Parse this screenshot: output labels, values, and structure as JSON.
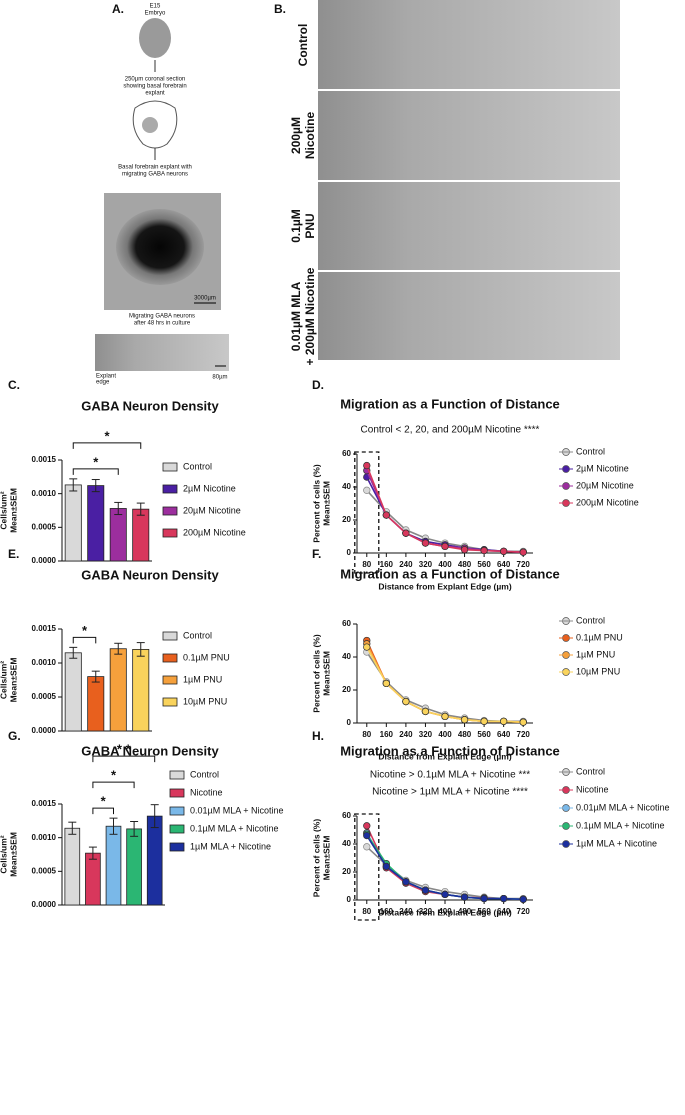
{
  "panel_a": {
    "label": "A.",
    "embryo": [
      "E15",
      "Embryo"
    ],
    "section": [
      "250µm coronal section",
      "showing basal forebrain",
      "explant"
    ],
    "explant": [
      "Basal forebrain explant with",
      "migrating GABA neurons"
    ],
    "scale_bar_1": "3000µm",
    "caption": [
      "Migrating GABA neurons",
      "after 48 hrs in culture"
    ],
    "edge": [
      "Explant",
      "edge"
    ],
    "scale_bar_2": "80µm"
  },
  "panel_b": {
    "label": "B.",
    "rows": [
      [
        "Control"
      ],
      [
        "200µM",
        "Nicotine"
      ],
      [
        "0.1µM",
        "PNU"
      ],
      [
        "0.01µM MLA",
        "+ 200µM Nicotine"
      ]
    ]
  },
  "chart_data": [
    {
      "type": "bar",
      "panel_label": "C.",
      "title": "GABA Neuron Density",
      "y_label": [
        "Cells/um²",
        "Mean±SEM"
      ],
      "categories": [
        "Control",
        "2µM Nicotine",
        "20µM Nicotine",
        "200µM Nicotine"
      ],
      "values": [
        0.00113,
        0.00112,
        0.00078,
        0.00077
      ],
      "errors": [
        9e-05,
        9e-05,
        9e-05,
        9e-05
      ],
      "colors": [
        "#d9d9d9",
        "#4a1fa3",
        "#9c2e9e",
        "#d8375c"
      ],
      "ylim": [
        0,
        0.0015
      ],
      "yticks": [
        {
          "value": 0,
          "label": "0.0000"
        },
        {
          "value": 0.0005,
          "label": "0.0005"
        },
        {
          "value": 0.001,
          "label": "0.0010"
        },
        {
          "value": 0.0015,
          "label": "0.0015"
        }
      ],
      "significance": [
        {
          "from": "Control",
          "to": "20µM Nicotine",
          "label": "*"
        },
        {
          "from": "Control",
          "to": "200µM Nicotine",
          "label": "*"
        }
      ]
    },
    {
      "type": "line",
      "panel_label": "D.",
      "title": "Migration as a Function of Distance",
      "subtitle": [
        "Control < 2, 20, and 200µM Nicotine ****"
      ],
      "x_label": "Distance from Explant Edge (µm)",
      "y_label": [
        "Percent of cells (%)",
        "Mean±SEM"
      ],
      "x": [
        80,
        160,
        240,
        320,
        400,
        480,
        560,
        640,
        720
      ],
      "xlim": [
        40,
        760
      ],
      "xticks": [
        80,
        160,
        240,
        320,
        400,
        480,
        560,
        640,
        720
      ],
      "ylim": [
        0,
        60
      ],
      "yticks": [
        0,
        20,
        40,
        60
      ],
      "highlight_x": 80,
      "series": [
        {
          "name": "Control",
          "color": "#d9d9d9",
          "values": [
            38,
            25,
            14,
            9,
            6,
            4,
            2,
            1,
            1
          ]
        },
        {
          "name": "2µM Nicotine",
          "color": "#4a1fa3",
          "values": [
            46,
            23,
            12,
            7,
            5,
            3,
            2,
            1,
            0.5
          ]
        },
        {
          "name": "20µM Nicotine",
          "color": "#9c2e9e",
          "values": [
            50,
            23,
            12,
            6,
            4,
            3,
            1.5,
            1,
            0.5
          ]
        },
        {
          "name": "200µM Nicotine",
          "color": "#d8375c",
          "values": [
            53,
            23,
            12,
            6,
            4,
            2,
            1.5,
            1,
            0.5
          ]
        }
      ]
    },
    {
      "type": "bar",
      "panel_label": "E.",
      "title": "GABA Neuron Density",
      "y_label": [
        "Cells/um²",
        "Mean±SEM"
      ],
      "categories": [
        "Control",
        "0.1µM PNU",
        "1µM PNU",
        "10µM  PNU"
      ],
      "values": [
        0.00115,
        0.0008,
        0.00121,
        0.0012
      ],
      "errors": [
        8e-05,
        8e-05,
        8e-05,
        0.0001
      ],
      "colors": [
        "#d9d9d9",
        "#e8601e",
        "#f5a03c",
        "#f9d35c"
      ],
      "ylim": [
        0,
        0.0015
      ],
      "yticks": [
        {
          "value": 0,
          "label": "0.0000"
        },
        {
          "value": 0.0005,
          "label": "0.0005"
        },
        {
          "value": 0.001,
          "label": "0.0010"
        },
        {
          "value": 0.0015,
          "label": "0.0015"
        }
      ],
      "significance": [
        {
          "from": "Control",
          "to": "0.1µM PNU",
          "label": "*"
        }
      ]
    },
    {
      "type": "line",
      "panel_label": "F.",
      "title": "Migration as a Function of Distance",
      "x_label": "Distance from Explant Edge (µm)",
      "y_label": [
        "Percent of cells (%)",
        "Mean±SEM"
      ],
      "x": [
        80,
        160,
        240,
        320,
        400,
        480,
        560,
        640,
        720
      ],
      "xlim": [
        40,
        760
      ],
      "xticks": [
        80,
        160,
        240,
        320,
        400,
        480,
        560,
        640,
        720
      ],
      "ylim": [
        0,
        60
      ],
      "yticks": [
        0,
        20,
        40,
        60
      ],
      "series": [
        {
          "name": "Control",
          "color": "#d9d9d9",
          "values": [
            43,
            25,
            14,
            9,
            5,
            3,
            1.5,
            1,
            1
          ]
        },
        {
          "name": "0.1µM PNU",
          "color": "#e8601e",
          "values": [
            50,
            24,
            13,
            7,
            4,
            2,
            1,
            1,
            0.5
          ]
        },
        {
          "name": "1µM PNU",
          "color": "#f5a03c",
          "values": [
            48,
            24,
            13,
            7,
            4,
            2,
            1,
            1,
            0.5
          ]
        },
        {
          "name": "10µM PNU",
          "color": "#f9d35c",
          "values": [
            46,
            24,
            13,
            7,
            4,
            2,
            1,
            1,
            0.5
          ]
        }
      ]
    },
    {
      "type": "bar",
      "panel_label": "G.",
      "title": "GABA Neuron Density",
      "y_label": [
        "Cells/um²",
        "Mean±SEM"
      ],
      "categories": [
        "Control",
        "Nicotine",
        "0.01µM MLA + Nicotine",
        "0.1µM MLA + Nicotine",
        "1µM MLA + Nicotine"
      ],
      "values": [
        0.00114,
        0.00077,
        0.00117,
        0.00113,
        0.00132
      ],
      "errors": [
        9e-05,
        9e-05,
        0.00012,
        0.00011,
        0.00017
      ],
      "colors": [
        "#d9d9d9",
        "#d8375c",
        "#7ab8e8",
        "#2bb673",
        "#1c2f9e"
      ],
      "ylim": [
        0,
        0.0015
      ],
      "yticks": [
        {
          "value": 0,
          "label": "0.0000"
        },
        {
          "value": 0.0005,
          "label": "0.0005"
        },
        {
          "value": 0.001,
          "label": "0.0010"
        },
        {
          "value": 0.0015,
          "label": "0.0015"
        }
      ],
      "significance": [
        {
          "from": "Nicotine",
          "to": "0.01µM MLA + Nicotine",
          "label": "*"
        },
        {
          "from": "Nicotine",
          "to": "0.1µM MLA + Nicotine",
          "label": "*"
        },
        {
          "from": "Nicotine",
          "to": "1µM MLA + Nicotine",
          "label": "* *"
        }
      ]
    },
    {
      "type": "line",
      "panel_label": "H.",
      "title": "Migration as a Function of Distance",
      "subtitle": [
        "Nicotine > 0.1µM MLA  + Nicotine ***",
        "Nicotine > 1µM MLA + Nicotine ****"
      ],
      "x_label": "Distance from Explant Edge (µm)",
      "y_label": [
        "Percent of cells (%)",
        "Mean±SEM"
      ],
      "x": [
        80,
        160,
        240,
        320,
        400,
        480,
        560,
        640,
        720
      ],
      "xlim": [
        40,
        760
      ],
      "xticks": [
        80,
        160,
        240,
        320,
        400,
        480,
        560,
        640,
        720
      ],
      "ylim": [
        0,
        60
      ],
      "yticks": [
        0,
        20,
        40,
        60
      ],
      "highlight_x": 80,
      "series": [
        {
          "name": "Control",
          "color": "#d9d9d9",
          "values": [
            38,
            25,
            14,
            9,
            6,
            4,
            2,
            1,
            1
          ]
        },
        {
          "name": "Nicotine",
          "color": "#d8375c",
          "values": [
            53,
            23,
            12,
            6,
            4,
            2,
            1.5,
            1,
            0.5
          ]
        },
        {
          "name": "0.01µM MLA + Nicotine",
          "color": "#7ab8e8",
          "values": [
            48,
            24,
            13,
            7,
            4,
            2,
            1,
            1,
            0.5
          ]
        },
        {
          "name": "0.1µM MLA + Nicotine",
          "color": "#2bb673",
          "values": [
            47,
            26,
            13,
            7,
            4,
            2,
            1,
            1,
            0.5
          ]
        },
        {
          "name": "1µM MLA + Nicotine",
          "color": "#1c2f9e",
          "values": [
            46,
            24,
            13,
            7,
            4,
            2,
            1,
            1,
            0.5
          ]
        }
      ]
    }
  ]
}
